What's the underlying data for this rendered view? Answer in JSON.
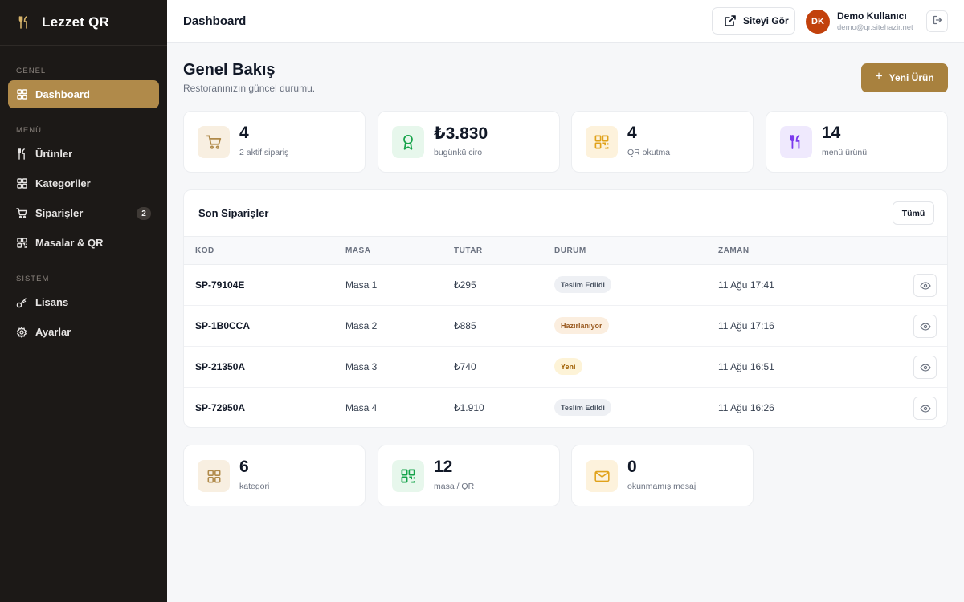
{
  "brand": {
    "name": "Lezzet QR"
  },
  "sidebar": {
    "sections": [
      {
        "title": "GENEL",
        "items": [
          {
            "label": "Dashboard",
            "icon": "grid-icon",
            "active": true
          }
        ]
      },
      {
        "title": "MENÜ",
        "items": [
          {
            "label": "Ürünler",
            "icon": "utensils-icon"
          },
          {
            "label": "Kategoriler",
            "icon": "grid-icon"
          },
          {
            "label": "Siparişler",
            "icon": "cart-icon",
            "badge": "2"
          },
          {
            "label": "Masalar & QR",
            "icon": "qr-icon"
          }
        ]
      },
      {
        "title": "SİSTEM",
        "items": [
          {
            "label": "Lisans",
            "icon": "key-icon"
          },
          {
            "label": "Ayarlar",
            "icon": "gear-icon"
          }
        ]
      }
    ]
  },
  "header": {
    "title": "Dashboard",
    "site_button": "Siteyi Gör",
    "user": {
      "initials": "DK",
      "name": "Demo Kullanıcı",
      "email": "demo@qr.sitehazir.net"
    }
  },
  "main": {
    "title": "Genel Bakış",
    "subtitle": "Restoranınızın güncel durumu.",
    "new_button": "Yeni Ürün",
    "stats": [
      {
        "value": "4",
        "label": "2 aktif sipariş",
        "icon": "cart-icon",
        "color": "#b08a4a",
        "bg": "#f8efe1"
      },
      {
        "value": "₺3.830",
        "label": "bugünkü ciro",
        "icon": "award-icon",
        "color": "#16a34a",
        "bg": "#e7f7ec"
      },
      {
        "value": "4",
        "label": "QR okutma",
        "icon": "qr-icon",
        "color": "#e0a21b",
        "bg": "#fdf2dc"
      },
      {
        "value": "14",
        "label": "menü ürünü",
        "icon": "utensils-icon",
        "color": "#7c3aed",
        "bg": "#efe9fd"
      }
    ],
    "orders": {
      "title": "Son Siparişler",
      "all_button": "Tümü",
      "columns": [
        "KOD",
        "MASA",
        "TUTAR",
        "DURUM",
        "ZAMAN"
      ],
      "rows": [
        {
          "code": "SP-79104E",
          "table": "Masa 1",
          "amount": "₺295",
          "status": "Teslim Edildi",
          "status_type": "done",
          "time": "11 Ağu 17:41"
        },
        {
          "code": "SP-1B0CCA",
          "table": "Masa 2",
          "amount": "₺885",
          "status": "Hazırlanıyor",
          "status_type": "prep",
          "time": "11 Ağu 17:16"
        },
        {
          "code": "SP-21350A",
          "table": "Masa 3",
          "amount": "₺740",
          "status": "Yeni",
          "status_type": "new",
          "time": "11 Ağu 16:51"
        },
        {
          "code": "SP-72950A",
          "table": "Masa 4",
          "amount": "₺1.910",
          "status": "Teslim Edildi",
          "status_type": "done",
          "time": "11 Ağu 16:26"
        }
      ]
    },
    "bottom_stats": [
      {
        "value": "6",
        "label": "kategori",
        "icon": "grid-icon",
        "color": "#b08a4a",
        "bg": "#f8efe1"
      },
      {
        "value": "12",
        "label": "masa / QR",
        "icon": "qr-icon",
        "color": "#16a34a",
        "bg": "#e7f7ec"
      },
      {
        "value": "0",
        "label": "okunmamış mesaj",
        "icon": "mail-icon",
        "color": "#e0a21b",
        "bg": "#fdf2dc"
      }
    ]
  }
}
